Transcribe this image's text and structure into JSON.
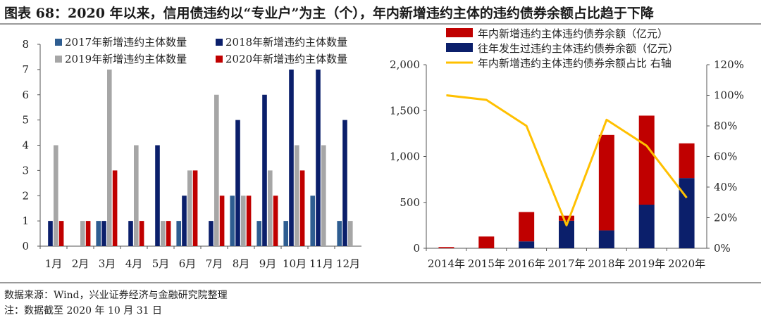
{
  "title": "图表 68：2020 年以来，信用债违约以“专业户”为主（个），年内新增违约主体的违约债券余额占比趋于下降",
  "source": "数据来源：Wind，兴业证券经济与金融研究院整理",
  "footnote": "注：数据截至 2020 年 10 月 31 日",
  "colors": {
    "s2017": "#2e5d91",
    "s2018": "#0b1f6b",
    "s2019": "#a6a6a6",
    "s2020": "#c00000",
    "new": "#c00000",
    "old": "#0b1f6b",
    "ratio": "#ffc000"
  },
  "chart_data": [
    {
      "type": "bar",
      "categories": [
        "1月",
        "2月",
        "3月",
        "4月",
        "5月",
        "6月",
        "7月",
        "8月",
        "9月",
        "10月",
        "11月",
        "12月"
      ],
      "ylim": [
        0,
        8
      ],
      "yticks": [
        "0",
        "1",
        "2",
        "3",
        "4",
        "5",
        "6",
        "7",
        "8"
      ],
      "grid": false,
      "legend": "top",
      "series": [
        {
          "name": "2017年新增违约主体数量",
          "values": [
            0,
            0,
            1,
            0,
            0,
            1,
            0,
            2,
            1,
            1,
            2,
            1
          ]
        },
        {
          "name": "2018年新增违约主体数量",
          "values": [
            1,
            0,
            1,
            1,
            4,
            2,
            1,
            5,
            6,
            7,
            7,
            5
          ]
        },
        {
          "name": "2019年新增违约主体数量",
          "values": [
            4,
            1,
            7,
            4,
            1,
            3,
            6,
            2,
            3,
            4,
            4,
            1
          ]
        },
        {
          "name": "2020年新增违约主体数量",
          "values": [
            1,
            1,
            3,
            1,
            1,
            3,
            2,
            2,
            2,
            3,
            0,
            0
          ]
        }
      ]
    },
    {
      "type": "bar",
      "stacked": true,
      "categories": [
        "2014年",
        "2015年",
        "2016年",
        "2017年",
        "2018年",
        "2019年",
        "2020年"
      ],
      "ylim": [
        0,
        2000
      ],
      "yticks": [
        "0",
        "500",
        "1,000",
        "1,500",
        "2,000"
      ],
      "y2lim": [
        0,
        1.2
      ],
      "y2ticks": [
        "0%",
        "20%",
        "40%",
        "60%",
        "80%",
        "100%",
        "120%"
      ],
      "grid": false,
      "legend": "top",
      "series": [
        {
          "name": "往年发生过违约主体违约债券余额（亿元）",
          "values": [
            0,
            0,
            75,
            300,
            195,
            475,
            765
          ]
        },
        {
          "name": "年内新增违约主体违约债券余额（亿元）",
          "values": [
            13,
            128,
            320,
            55,
            1040,
            970,
            378
          ]
        },
        {
          "name": "年内新增违约主体违约债券余额占比 右轴",
          "type": "line",
          "axis": "right",
          "values": [
            1.0,
            0.97,
            0.8,
            0.15,
            0.84,
            0.67,
            0.33
          ]
        }
      ]
    }
  ]
}
